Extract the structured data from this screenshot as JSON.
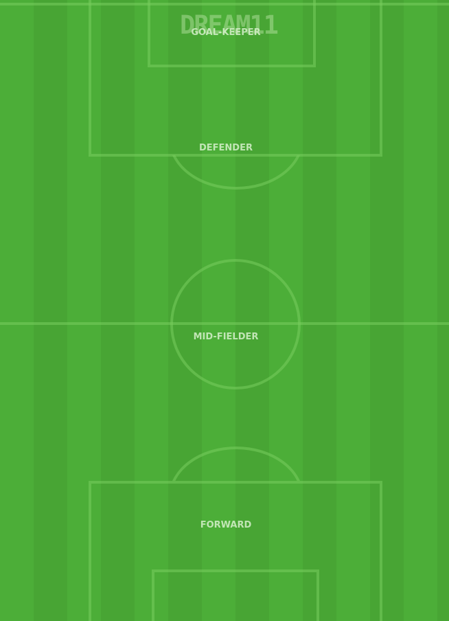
{
  "brand": {
    "logo_text": "DREAM11"
  },
  "positions": [
    {
      "label": "GOAL-KEEPER"
    },
    {
      "label": "DEFENDER"
    },
    {
      "label": "MID-FIELDER"
    },
    {
      "label": "FORWARD"
    }
  ],
  "colors": {
    "pitch_light": "#4cae38",
    "pitch_dark": "#48a534",
    "line": "#78cd5f"
  }
}
